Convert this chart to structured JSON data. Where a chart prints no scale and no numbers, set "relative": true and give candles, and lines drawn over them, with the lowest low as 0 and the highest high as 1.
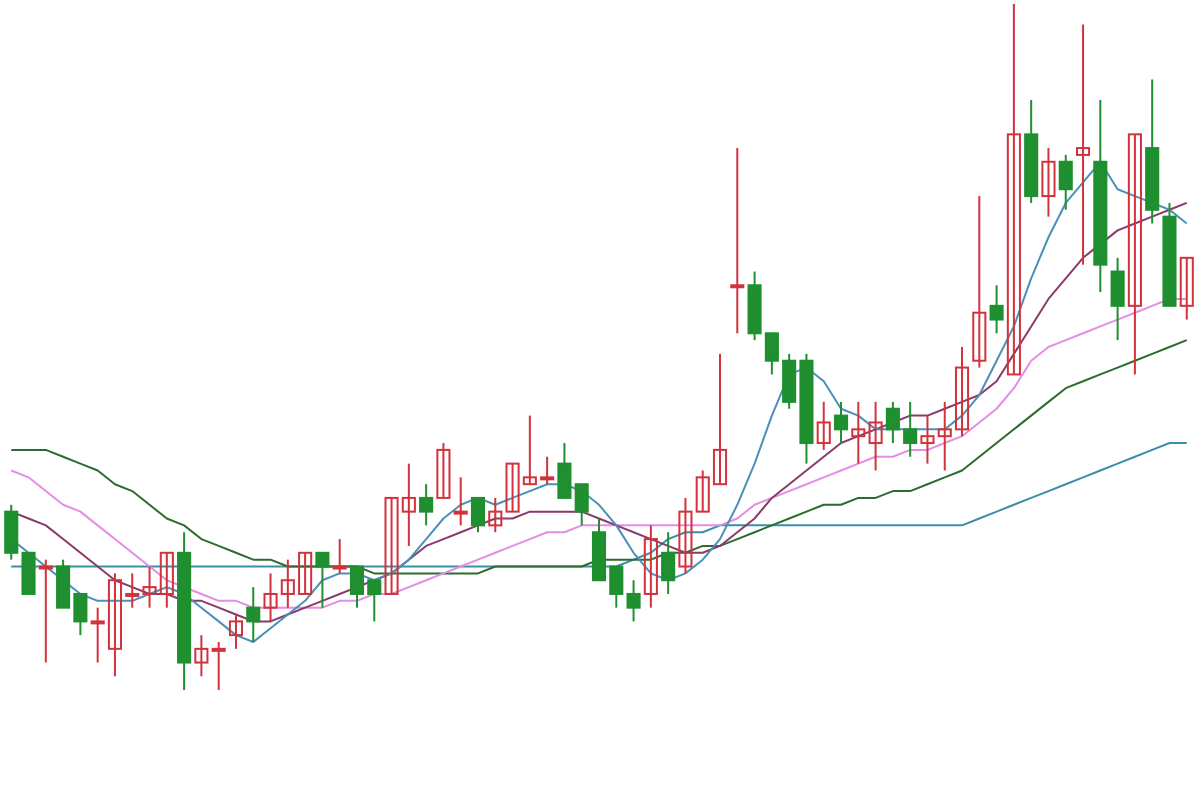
{
  "chart_data": {
    "type": "candlestick",
    "relative": true,
    "categories": [
      null,
      null,
      null,
      null,
      null,
      null,
      null,
      null,
      null,
      null,
      null,
      null,
      null,
      null,
      null,
      null,
      null,
      null,
      null,
      null,
      null,
      null,
      null,
      null,
      null,
      null,
      null,
      null,
      null,
      null,
      null,
      null,
      null,
      null,
      null,
      null,
      null,
      null,
      null,
      null,
      null,
      null,
      null,
      null,
      null,
      null,
      null,
      null,
      null,
      null,
      null,
      null,
      null,
      null,
      null,
      null,
      null,
      null,
      null,
      null,
      null,
      null,
      null,
      null,
      null,
      null,
      null,
      null,
      null
    ],
    "ohlc": [
      [
        0.26,
        0.27,
        0.19,
        0.2
      ],
      [
        0.2,
        0.2,
        0.14,
        0.14
      ],
      [
        0.18,
        0.19,
        0.04,
        0.18
      ],
      [
        0.18,
        0.19,
        0.12,
        0.12
      ],
      [
        0.14,
        0.14,
        0.08,
        0.1
      ],
      [
        0.1,
        0.12,
        0.04,
        0.1
      ],
      [
        0.06,
        0.17,
        0.02,
        0.16
      ],
      [
        0.14,
        0.17,
        0.12,
        0.14
      ],
      [
        0.14,
        0.18,
        0.12,
        0.15
      ],
      [
        0.14,
        0.2,
        0.12,
        0.2
      ],
      [
        0.2,
        0.23,
        0,
        0.04
      ],
      [
        0.04,
        0.08,
        0.02,
        0.06
      ],
      [
        0.06,
        0.07,
        0,
        0.06
      ],
      [
        0.08,
        0.11,
        0.06,
        0.1
      ],
      [
        0.12,
        0.15,
        0.07,
        0.1
      ],
      [
        0.12,
        0.17,
        0.1,
        0.14
      ],
      [
        0.14,
        0.19,
        0.12,
        0.16
      ],
      [
        0.14,
        0.2,
        0.14,
        0.2
      ],
      [
        0.2,
        0.2,
        0.12,
        0.18
      ],
      [
        0.18,
        0.22,
        0.17,
        0.18
      ],
      [
        0.18,
        0.18,
        0.12,
        0.14
      ],
      [
        0.16,
        0.16,
        0.1,
        0.14
      ],
      [
        0.14,
        0.28,
        0.14,
        0.28
      ],
      [
        0.26,
        0.33,
        0.21,
        0.28
      ],
      [
        0.28,
        0.3,
        0.24,
        0.26
      ],
      [
        0.28,
        0.36,
        0.28,
        0.35
      ],
      [
        0.26,
        0.31,
        0.24,
        0.26
      ],
      [
        0.28,
        0.28,
        0.23,
        0.24
      ],
      [
        0.24,
        0.28,
        0.23,
        0.26
      ],
      [
        0.26,
        0.33,
        0.26,
        0.33
      ],
      [
        0.3,
        0.4,
        0.3,
        0.31
      ],
      [
        0.31,
        0.34,
        0.3,
        0.31
      ],
      [
        0.33,
        0.36,
        0.28,
        0.28
      ],
      [
        0.3,
        0.3,
        0.24,
        0.26
      ],
      [
        0.23,
        0.25,
        0.16,
        0.16
      ],
      [
        0.18,
        0.18,
        0.12,
        0.14
      ],
      [
        0.14,
        0.16,
        0.1,
        0.12
      ],
      [
        0.14,
        0.24,
        0.12,
        0.22
      ],
      [
        0.2,
        0.23,
        0.14,
        0.16
      ],
      [
        0.18,
        0.28,
        0.17,
        0.26
      ],
      [
        0.26,
        0.32,
        0.26,
        0.31
      ],
      [
        0.3,
        0.49,
        0.3,
        0.35
      ],
      [
        0.59,
        0.79,
        0.52,
        0.59
      ],
      [
        0.59,
        0.61,
        0.51,
        0.52
      ],
      [
        0.52,
        0.52,
        0.46,
        0.48
      ],
      [
        0.48,
        0.49,
        0.41,
        0.42
      ],
      [
        0.48,
        0.49,
        0.33,
        0.36
      ],
      [
        0.36,
        0.42,
        0.35,
        0.39
      ],
      [
        0.4,
        0.42,
        0.36,
        0.38
      ],
      [
        0.37,
        0.42,
        0.33,
        0.38
      ],
      [
        0.36,
        0.42,
        0.32,
        0.39
      ],
      [
        0.41,
        0.42,
        0.36,
        0.38
      ],
      [
        0.38,
        0.42,
        0.34,
        0.36
      ],
      [
        0.36,
        0.4,
        0.33,
        0.37
      ],
      [
        0.37,
        0.42,
        0.32,
        0.38
      ],
      [
        0.38,
        0.5,
        0.37,
        0.47
      ],
      [
        0.48,
        0.72,
        0.47,
        0.55
      ],
      [
        0.56,
        0.59,
        0.52,
        0.54
      ],
      [
        0.46,
        1,
        0.46,
        0.81
      ],
      [
        0.81,
        0.86,
        0.71,
        0.72
      ],
      [
        0.72,
        0.79,
        0.69,
        0.77
      ],
      [
        0.77,
        0.78,
        0.7,
        0.73
      ],
      [
        0.78,
        0.97,
        0.62,
        0.79
      ],
      [
        0.77,
        0.86,
        0.58,
        0.62
      ],
      [
        0.61,
        0.63,
        0.51,
        0.56
      ],
      [
        0.56,
        0.81,
        0.46,
        0.81
      ],
      [
        0.79,
        0.89,
        0.68,
        0.7
      ],
      [
        0.69,
        0.71,
        0.56,
        0.56
      ],
      [
        0.56,
        0.63,
        0.54,
        0.63
      ]
    ],
    "series": [
      {
        "type": "line",
        "color": "#3a8fa8",
        "values": [
          0.18,
          0.18,
          0.18,
          0.18,
          0.18,
          0.18,
          0.18,
          0.18,
          0.18,
          0.18,
          0.18,
          0.18,
          0.18,
          0.18,
          0.18,
          0.18,
          0.18,
          0.18,
          0.18,
          0.18,
          0.18,
          0.18,
          0.18,
          0.18,
          0.18,
          0.18,
          0.18,
          0.18,
          0.18,
          0.18,
          0.18,
          0.18,
          0.18,
          0.18,
          0.18,
          0.18,
          0.19,
          0.2,
          0.22,
          0.23,
          0.23,
          0.24,
          0.24,
          0.24,
          0.24,
          0.24,
          0.24,
          0.24,
          0.24,
          0.24,
          0.24,
          0.24,
          0.24,
          0.24,
          0.24,
          0.24,
          0.25,
          0.26,
          0.27,
          0.28,
          0.29,
          0.3,
          0.31,
          0.32,
          0.33,
          0.34,
          0.35,
          0.36,
          0.36
        ]
      },
      {
        "type": "line",
        "color": "#2e6b2e",
        "values": [
          0.35,
          0.35,
          0.35,
          0.34,
          0.33,
          0.32,
          0.3,
          0.29,
          0.27,
          0.25,
          0.24,
          0.22,
          0.21,
          0.2,
          0.19,
          0.19,
          0.18,
          0.18,
          0.18,
          0.18,
          0.18,
          0.17,
          0.17,
          0.17,
          0.17,
          0.17,
          0.17,
          0.17,
          0.18,
          0.18,
          0.18,
          0.18,
          0.18,
          0.18,
          0.19,
          0.19,
          0.19,
          0.19,
          0.2,
          0.2,
          0.21,
          0.21,
          0.22,
          0.23,
          0.24,
          0.25,
          0.26,
          0.27,
          0.27,
          0.28,
          0.28,
          0.29,
          0.29,
          0.3,
          0.31,
          0.32,
          0.34,
          0.36,
          0.38,
          0.4,
          0.42,
          0.44,
          0.45,
          0.46,
          0.47,
          0.48,
          0.49,
          0.5,
          0.51
        ]
      },
      {
        "type": "line",
        "color": "#e58ce5",
        "values": [
          0.32,
          0.31,
          0.29,
          0.27,
          0.26,
          0.24,
          0.22,
          0.2,
          0.18,
          0.16,
          0.15,
          0.14,
          0.13,
          0.13,
          0.12,
          0.12,
          0.12,
          0.12,
          0.12,
          0.13,
          0.13,
          0.14,
          0.14,
          0.15,
          0.16,
          0.17,
          0.18,
          0.19,
          0.2,
          0.21,
          0.22,
          0.23,
          0.23,
          0.24,
          0.24,
          0.24,
          0.24,
          0.24,
          0.24,
          0.24,
          0.24,
          0.24,
          0.25,
          0.27,
          0.28,
          0.29,
          0.3,
          0.31,
          0.32,
          0.33,
          0.34,
          0.34,
          0.35,
          0.35,
          0.36,
          0.37,
          0.39,
          0.41,
          0.44,
          0.48,
          0.5,
          0.51,
          0.52,
          0.53,
          0.54,
          0.55,
          0.56,
          0.57,
          0.57
        ]
      },
      {
        "type": "line",
        "color": "#8a3a6a",
        "values": [
          0.26,
          0.25,
          0.24,
          0.22,
          0.2,
          0.18,
          0.16,
          0.15,
          0.14,
          0.14,
          0.13,
          0.13,
          0.12,
          0.11,
          0.1,
          0.1,
          0.11,
          0.12,
          0.13,
          0.14,
          0.15,
          0.16,
          0.17,
          0.19,
          0.21,
          0.22,
          0.23,
          0.24,
          0.25,
          0.25,
          0.26,
          0.26,
          0.26,
          0.26,
          0.25,
          0.24,
          0.23,
          0.22,
          0.21,
          0.2,
          0.2,
          0.21,
          0.23,
          0.25,
          0.28,
          0.3,
          0.32,
          0.34,
          0.36,
          0.37,
          0.38,
          0.39,
          0.4,
          0.4,
          0.41,
          0.42,
          0.43,
          0.45,
          0.49,
          0.53,
          0.57,
          0.6,
          0.63,
          0.65,
          0.67,
          0.68,
          0.69,
          0.7,
          0.71
        ]
      },
      {
        "type": "line",
        "color": "#4a90b8",
        "values": [
          0.22,
          0.2,
          0.18,
          0.16,
          0.14,
          0.13,
          0.13,
          0.13,
          0.14,
          0.15,
          0.14,
          0.12,
          0.1,
          0.08,
          0.07,
          0.09,
          0.11,
          0.13,
          0.16,
          0.17,
          0.17,
          0.16,
          0.17,
          0.19,
          0.22,
          0.25,
          0.27,
          0.28,
          0.27,
          0.28,
          0.29,
          0.3,
          0.3,
          0.29,
          0.27,
          0.24,
          0.2,
          0.17,
          0.16,
          0.17,
          0.19,
          0.22,
          0.27,
          0.33,
          0.4,
          0.46,
          0.47,
          0.45,
          0.41,
          0.4,
          0.38,
          0.38,
          0.38,
          0.38,
          0.38,
          0.4,
          0.43,
          0.48,
          0.53,
          0.6,
          0.66,
          0.71,
          0.74,
          0.77,
          0.73,
          0.72,
          0.71,
          0.7,
          0.68
        ]
      }
    ]
  }
}
